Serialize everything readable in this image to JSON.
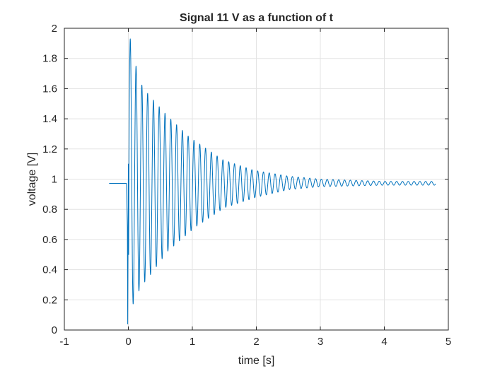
{
  "chart_data": {
    "type": "line",
    "title": "Signal 11 V as a function of t",
    "xlabel": "time [s]",
    "ylabel": "voltage [V]",
    "xlim": [
      -1,
      5
    ],
    "ylim": [
      0,
      2
    ],
    "xticks": [
      -1,
      0,
      1,
      2,
      3,
      4,
      5
    ],
    "xtick_labels": [
      "-1",
      "0",
      "1",
      "2",
      "3",
      "4",
      "5"
    ],
    "yticks": [
      0,
      0.2,
      0.4,
      0.6,
      0.8,
      1,
      1.2,
      1.4,
      1.6,
      1.8,
      2
    ],
    "ytick_labels": [
      "0",
      "0.2",
      "0.4",
      "0.6",
      "0.8",
      "1",
      "1.2",
      "1.4",
      "1.6",
      "1.8",
      "2"
    ],
    "grid": true,
    "series": [
      {
        "color": "#0072BD",
        "baseline_before_step": 0.972,
        "steady_state": 0.975,
        "x_start": -0.3,
        "x_step": -0.03,
        "x_end": 4.8,
        "oscillation_period": 0.0905,
        "peaks": [
          {
            "x": 0.03,
            "y": 1.93
          },
          {
            "x": 0.17,
            "y": 1.65
          },
          {
            "x": 0.3,
            "y": 1.57
          },
          {
            "x": 0.44,
            "y": 1.5
          },
          {
            "x": 0.61,
            "y": 1.42
          },
          {
            "x": 0.95,
            "y": 1.28
          },
          {
            "x": 1.47,
            "y": 1.13
          },
          {
            "x": 1.95,
            "y": 1.06
          },
          {
            "x": 2.5,
            "y": 1.02
          },
          {
            "x": 3.0,
            "y": 1.0
          },
          {
            "x": 4.0,
            "y": 0.985
          }
        ],
        "troughs": [
          {
            "x": -0.02,
            "y": 0.04
          },
          {
            "x": 0.11,
            "y": 0.22
          },
          {
            "x": 0.24,
            "y": 0.31
          },
          {
            "x": 0.37,
            "y": 0.38
          },
          {
            "x": 0.61,
            "y": 0.52
          },
          {
            "x": 1.04,
            "y": 0.68
          },
          {
            "x": 1.5,
            "y": 0.81
          },
          {
            "x": 2.0,
            "y": 0.88
          },
          {
            "x": 2.5,
            "y": 0.93
          },
          {
            "x": 3.0,
            "y": 0.95
          },
          {
            "x": 4.0,
            "y": 0.96
          }
        ]
      }
    ]
  }
}
